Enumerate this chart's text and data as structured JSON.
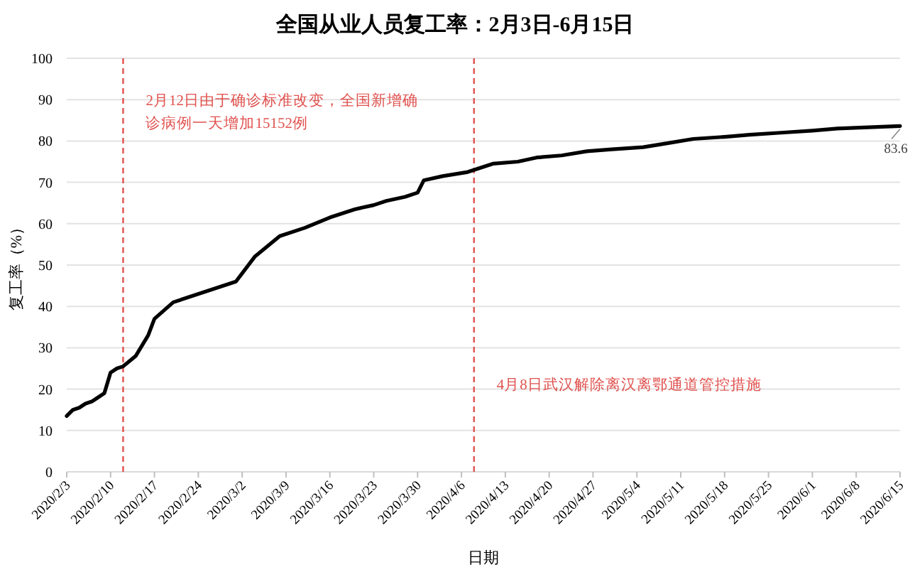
{
  "chart_data": {
    "type": "line",
    "title": "全国从业人员复工率：2月3日-6月15日",
    "xlabel": "日期",
    "ylabel": "复工率（%）",
    "x": [
      "2020-02-03",
      "2020-02-04",
      "2020-02-05",
      "2020-02-06",
      "2020-02-07",
      "2020-02-08",
      "2020-02-09",
      "2020-02-10",
      "2020-02-11",
      "2020-02-12",
      "2020-02-14",
      "2020-02-16",
      "2020-02-17",
      "2020-02-20",
      "2020-03-01",
      "2020-03-04",
      "2020-03-08",
      "2020-03-12",
      "2020-03-16",
      "2020-03-20",
      "2020-03-23",
      "2020-03-25",
      "2020-03-28",
      "2020-03-30",
      "2020-03-31",
      "2020-04-03",
      "2020-04-07",
      "2020-04-09",
      "2020-04-11",
      "2020-04-15",
      "2020-04-18",
      "2020-04-22",
      "2020-04-26",
      "2020-04-30",
      "2020-05-05",
      "2020-05-09",
      "2020-05-13",
      "2020-05-18",
      "2020-05-22",
      "2020-05-27",
      "2020-06-01",
      "2020-06-05",
      "2020-06-10",
      "2020-06-15"
    ],
    "series": [
      {
        "color": "#000000",
        "values": [
          13.5,
          15,
          15.5,
          16.5,
          17,
          18,
          19,
          24,
          25,
          25.5,
          28,
          33,
          37,
          41,
          46,
          52,
          57,
          59,
          61.5,
          63.5,
          64.5,
          65.5,
          66.5,
          67.5,
          70.5,
          71.5,
          72.5,
          73.5,
          74.5,
          75,
          76,
          76.5,
          77.5,
          78,
          78.5,
          79.5,
          80.5,
          81,
          81.5,
          82,
          82.5,
          83,
          83.3,
          83.6
        ]
      }
    ],
    "ylim": [
      0,
      100
    ],
    "yticks": [
      0,
      10,
      20,
      30,
      40,
      50,
      60,
      70,
      80,
      90,
      100
    ],
    "xlim": [
      "2020-02-03",
      "2020-06-15"
    ],
    "xticks": [
      {
        "value": "2020-02-03",
        "label": "2020/2/3"
      },
      {
        "value": "2020-02-10",
        "label": "2020/2/10"
      },
      {
        "value": "2020-02-17",
        "label": "2020/2/17"
      },
      {
        "value": "2020-02-24",
        "label": "2020/2/24"
      },
      {
        "value": "2020-03-02",
        "label": "2020/3/2"
      },
      {
        "value": "2020-03-09",
        "label": "2020/3/9"
      },
      {
        "value": "2020-03-16",
        "label": "2020/3/16"
      },
      {
        "value": "2020-03-23",
        "label": "2020/3/23"
      },
      {
        "value": "2020-03-30",
        "label": "2020/3/30"
      },
      {
        "value": "2020-04-06",
        "label": "2020/4/6"
      },
      {
        "value": "2020-04-13",
        "label": "2020/4/13"
      },
      {
        "value": "2020-04-20",
        "label": "2020/4/20"
      },
      {
        "value": "2020-04-27",
        "label": "2020/4/27"
      },
      {
        "value": "2020-05-04",
        "label": "2020/5/4"
      },
      {
        "value": "2020-05-11",
        "label": "2020/5/11"
      },
      {
        "value": "2020-05-18",
        "label": "2020/5/18"
      },
      {
        "value": "2020-05-25",
        "label": "2020/5/25"
      },
      {
        "value": "2020-06-01",
        "label": "2020/6/1"
      },
      {
        "value": "2020-06-08",
        "label": "2020/6/8"
      },
      {
        "value": "2020-06-15",
        "label": "2020/6/15"
      }
    ],
    "grid": "y",
    "ref_lines": [
      {
        "axis": "x",
        "value": "2020-02-12",
        "label": "2月12日由于确诊标准改变，全国新增确诊病例一天增加15152例",
        "color": "#e0524f",
        "line_style": "dashed"
      },
      {
        "axis": "x",
        "value": "2020-04-08",
        "label": "4月8日武汉解除离汉离鄂通道管控措施",
        "color": "#e0524f",
        "line_style": "dashed"
      }
    ],
    "annotations": [
      {
        "text": "83.6",
        "x": "2020-06-15",
        "y": 83.6
      }
    ]
  }
}
